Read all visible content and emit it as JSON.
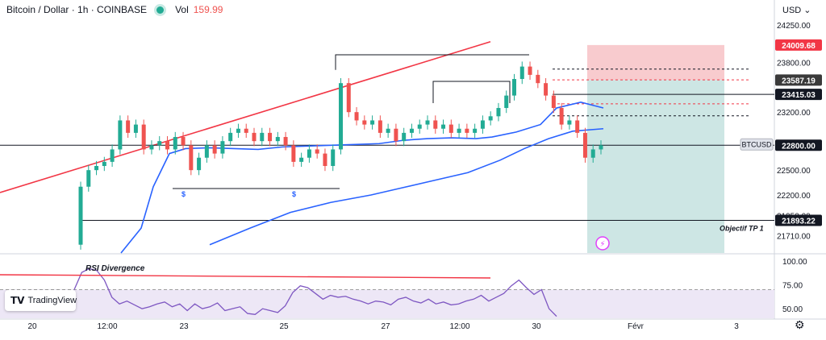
{
  "header": {
    "symbol": "Bitcoin / Dollar · 1h · COINBASE",
    "vol_label": "Vol",
    "vol_value": "159.99"
  },
  "currency": "USD",
  "currency_chevron": "chevron-down-icon",
  "branding": {
    "label": "TradingView",
    "icon": "tradingview-logo-icon"
  },
  "settings_icon": "gear-icon",
  "colors": {
    "up": "#22ab94",
    "down": "#ef5350",
    "trend": "#f23645",
    "ma": "#2962ff",
    "rsi": "#7e57c2",
    "stop_zone": "#f7c5c9",
    "target_zone": "#c8e3e1"
  },
  "chart_data": [
    {
      "type": "candlestick",
      "symbol": "BTCUSD",
      "timeframe": "1h",
      "x_tick_labels": [
        "20",
        "12:00",
        "23",
        "25",
        "27",
        "12:00",
        "30",
        "Févr",
        "3"
      ],
      "y_tick_labels": [
        "24250.00",
        "23800.00",
        "23200.00",
        "22800.00",
        "22500.00",
        "22200.00",
        "21950.00",
        "21710.00"
      ],
      "ylim": [
        21500,
        24320
      ],
      "price_line": {
        "label": "BTCUSD",
        "value": 22800.0,
        "value_label": "22800.00"
      },
      "price_labels": [
        {
          "value": 24009.68,
          "label": "24009.68",
          "color": "#f23645"
        },
        {
          "value": 23587.19,
          "label": "23587.19",
          "color": "#3a3a3a"
        },
        {
          "value": 23415.03,
          "label": "23415.03",
          "color": "#131722"
        },
        {
          "value": 21893.22,
          "label": "21893.22",
          "color": "#131722"
        }
      ],
      "annotations": [
        {
          "text": "Objectif TP 1"
        },
        {
          "text": "$"
        },
        {
          "text": "$"
        }
      ],
      "candles_approx": [
        [
          21600,
          22300
        ],
        [
          22300,
          22500
        ],
        [
          22500,
          22550
        ],
        [
          22550,
          22600
        ],
        [
          22600,
          22750
        ],
        [
          22750,
          23100
        ],
        [
          23100,
          22950
        ],
        [
          22950,
          23050
        ],
        [
          23050,
          22750
        ],
        [
          22750,
          22800
        ],
        [
          22800,
          22850
        ],
        [
          22850,
          22750
        ],
        [
          22750,
          22900
        ],
        [
          22900,
          22800
        ],
        [
          22800,
          22500
        ],
        [
          22500,
          22650
        ],
        [
          22650,
          22800
        ],
        [
          22800,
          22700
        ],
        [
          22700,
          22850
        ],
        [
          22850,
          22950
        ],
        [
          22950,
          23000
        ],
        [
          23000,
          22950
        ],
        [
          22950,
          22850
        ],
        [
          22850,
          22950
        ],
        [
          22950,
          22850
        ],
        [
          22850,
          22900
        ],
        [
          22900,
          22800
        ],
        [
          22800,
          22600
        ],
        [
          22600,
          22650
        ],
        [
          22650,
          22750
        ],
        [
          22750,
          22700
        ],
        [
          22700,
          22550
        ],
        [
          22550,
          22750
        ],
        [
          22750,
          23550
        ],
        [
          23550,
          23200
        ],
        [
          23200,
          23100
        ],
        [
          23100,
          23050
        ],
        [
          23050,
          23100
        ],
        [
          23100,
          22950
        ],
        [
          22950,
          23000
        ],
        [
          23000,
          22850
        ],
        [
          22850,
          22950
        ],
        [
          22950,
          23000
        ],
        [
          23000,
          23050
        ],
        [
          23050,
          23100
        ],
        [
          23100,
          23000
        ],
        [
          23000,
          23050
        ],
        [
          23050,
          22950
        ],
        [
          22950,
          23000
        ],
        [
          23000,
          22950
        ],
        [
          22950,
          23000
        ],
        [
          23000,
          23100
        ],
        [
          23100,
          23150
        ],
        [
          23150,
          23250
        ],
        [
          23250,
          23400
        ],
        [
          23400,
          23600
        ],
        [
          23600,
          23750
        ],
        [
          23750,
          23650
        ],
        [
          23650,
          23550
        ],
        [
          23550,
          23400
        ],
        [
          23400,
          23250
        ],
        [
          23250,
          23050
        ],
        [
          23050,
          23100
        ],
        [
          23100,
          22950
        ],
        [
          22950,
          22650
        ],
        [
          22650,
          22750
        ],
        [
          22750,
          22800
        ]
      ],
      "moving_averages": [
        {
          "name": "MA fast",
          "color": "#2962ff",
          "values": [
            21500,
            21800,
            22300,
            22700,
            22760,
            22770,
            22760,
            22750,
            22780,
            22790,
            22800,
            22810,
            22820,
            22860,
            22880,
            22890,
            22880,
            22900,
            22960,
            23050,
            23250,
            23320,
            23250
          ]
        },
        {
          "name": "MA slow",
          "color": "#2962ff",
          "values": [
            21600,
            21800,
            21990,
            22110,
            22200,
            22290,
            22380,
            22470,
            22620,
            22760,
            22880,
            22970,
            23000
          ]
        }
      ],
      "levels": [
        {
          "label": "Objectif TP 1",
          "value": 21893.22
        }
      ]
    },
    {
      "type": "line",
      "indicator": "RSI",
      "title": "RSI Divergence",
      "ylim": [
        40,
        105
      ],
      "y_tick_labels": [
        "100.00",
        "75.00",
        "50.00"
      ],
      "bands": [
        70,
        30
      ],
      "values": [
        70,
        88,
        92,
        90,
        80,
        62,
        55,
        58,
        54,
        50,
        52,
        55,
        57,
        52,
        55,
        48,
        55,
        50,
        52,
        56,
        48,
        50,
        52,
        45,
        44,
        50,
        48,
        46,
        53,
        67,
        74,
        72,
        66,
        60,
        64,
        62,
        63,
        60,
        58,
        55,
        58,
        57,
        54,
        60,
        62,
        58,
        56,
        60,
        55,
        57,
        54,
        55,
        58,
        60,
        64,
        58,
        62,
        66,
        74,
        80,
        72,
        65,
        70,
        50,
        42
      ]
    }
  ]
}
